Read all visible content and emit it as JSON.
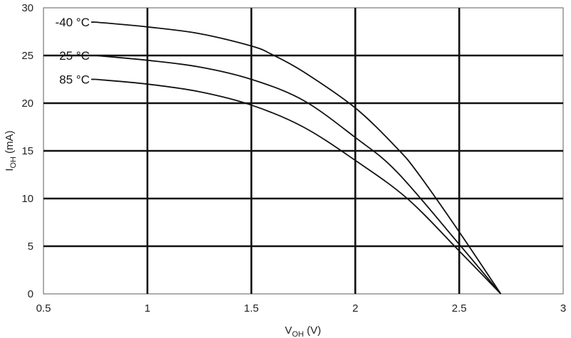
{
  "chart_data": {
    "type": "line",
    "xlabel": {
      "main": "V",
      "sub": "OH",
      "unit": " (V)"
    },
    "ylabel": {
      "main": "I",
      "sub": "OH",
      "unit": " (mA)"
    },
    "xlim": [
      0.5,
      3
    ],
    "ylim": [
      0,
      30
    ],
    "x_ticks": [
      "0.5",
      "1",
      "1.5",
      "2",
      "2.5",
      "3"
    ],
    "y_ticks": [
      "0",
      "5",
      "10",
      "15",
      "20",
      "25",
      "30"
    ],
    "grid": true,
    "series": [
      {
        "name": "-40 °C",
        "x": [
          0.75,
          1.0,
          1.25,
          1.5,
          1.6,
          1.75,
          2.0,
          2.2,
          2.3,
          2.5,
          2.7
        ],
        "y": [
          28.5,
          28.0,
          27.3,
          26.0,
          25.1,
          23.3,
          19.5,
          15.3,
          12.7,
          6.5,
          0
        ]
      },
      {
        "name": "25 °C",
        "x": [
          0.75,
          1.0,
          1.25,
          1.5,
          1.75,
          2.0,
          2.2,
          2.5,
          2.7
        ],
        "y": [
          25.0,
          24.5,
          23.8,
          22.5,
          20.3,
          16.4,
          12.8,
          5.2,
          0
        ]
      },
      {
        "name": "85 °C",
        "x": [
          0.75,
          1.0,
          1.25,
          1.5,
          1.75,
          2.0,
          2.25,
          2.5,
          2.7
        ],
        "y": [
          22.5,
          22.0,
          21.2,
          19.8,
          17.5,
          14.0,
          10.0,
          4.5,
          0
        ]
      }
    ]
  }
}
